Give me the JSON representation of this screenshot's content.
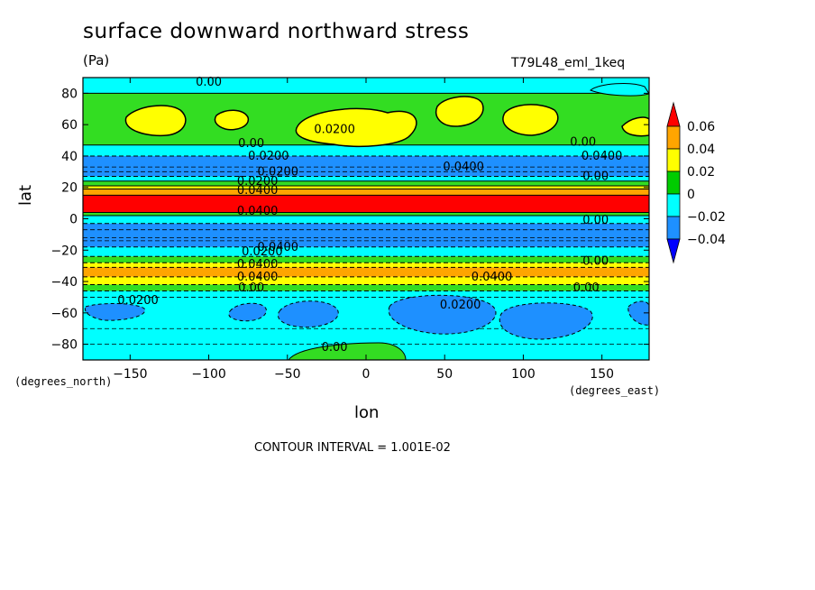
{
  "chart_data": {
    "type": "heatmap",
    "title": "surface downward northward stress",
    "units": "(Pa)",
    "run_id": "T79L48_eml_1keq",
    "xlabel": "lon",
    "ylabel": "lat",
    "x_units_note": "(degrees_east)",
    "y_units_note": "(degrees_north)",
    "contour_interval_text": "CONTOUR INTERVAL = 1.001E-02",
    "xlim": [
      -180,
      180
    ],
    "ylim": [
      -90,
      90
    ],
    "x_ticks": [
      -150,
      -100,
      -50,
      0,
      50,
      100,
      150
    ],
    "x_tick_labels": [
      "−150",
      "−100",
      "−50",
      "0",
      "50",
      "100",
      "150"
    ],
    "y_ticks": [
      80,
      60,
      40,
      20,
      0,
      -20,
      -40,
      -60,
      -80
    ],
    "y_tick_labels": [
      "80",
      "60",
      "40",
      "20",
      "0",
      "−20",
      "−40",
      "−60",
      "−80"
    ],
    "colorbar": {
      "levels": [
        0.06,
        0.04,
        0.02,
        0,
        -0.02,
        -0.04
      ],
      "labels": [
        "0.06",
        "0.04",
        "0.02",
        "0",
        "−0.02",
        "−0.04"
      ],
      "colors": [
        "#ff0000",
        "#ffa500",
        "#ffff00",
        "#00cc00",
        "#00ffff",
        "#1e90ff",
        "#0000ff"
      ]
    },
    "zonal_bands": [
      {
        "lat_top": 90,
        "lat_bottom": 80,
        "color": "#00ffff"
      },
      {
        "lat_top": 80,
        "lat_bottom": 47,
        "color": "#33dd22"
      },
      {
        "lat_top": 47,
        "lat_bottom": 40,
        "color": "#00ffff"
      },
      {
        "lat_top": 40,
        "lat_bottom": 27,
        "color": "#1e90ff"
      },
      {
        "lat_top": 27,
        "lat_bottom": 24,
        "color": "#00ffff"
      },
      {
        "lat_top": 24,
        "lat_bottom": 21,
        "color": "#33dd22"
      },
      {
        "lat_top": 21,
        "lat_bottom": 19,
        "color": "#ffff00"
      },
      {
        "lat_top": 19,
        "lat_bottom": 15,
        "color": "#ffa500"
      },
      {
        "lat_top": 15,
        "lat_bottom": 4,
        "color": "#ff0000"
      },
      {
        "lat_top": 4,
        "lat_bottom": 2,
        "color": "#33dd22"
      },
      {
        "lat_top": 2,
        "lat_bottom": -3,
        "color": "#00ffff"
      },
      {
        "lat_top": -3,
        "lat_bottom": -18,
        "color": "#1e90ff"
      },
      {
        "lat_top": -18,
        "lat_bottom": -24,
        "color": "#00ffff"
      },
      {
        "lat_top": -24,
        "lat_bottom": -28,
        "color": "#33dd22"
      },
      {
        "lat_top": -28,
        "lat_bottom": -31,
        "color": "#ffff00"
      },
      {
        "lat_top": -31,
        "lat_bottom": -37,
        "color": "#ffa500"
      },
      {
        "lat_top": -37,
        "lat_bottom": -42,
        "color": "#ffff00"
      },
      {
        "lat_top": -42,
        "lat_bottom": -46,
        "color": "#33dd22"
      },
      {
        "lat_top": -46,
        "lat_bottom": -90,
        "color": "#00ffff"
      }
    ],
    "contour_labels": [
      {
        "text": "0.00",
        "lon": -100,
        "lat": 87
      },
      {
        "text": "0.0200",
        "lon": -20,
        "lat": 57
      },
      {
        "text": "0.00",
        "lon": -73,
        "lat": 48
      },
      {
        "text": "0.0200",
        "lon": -62,
        "lat": 40
      },
      {
        "text": "0.0200",
        "lon": -56,
        "lat": 30
      },
      {
        "text": "0.0400",
        "lon": 62,
        "lat": 33
      },
      {
        "text": "0.00",
        "lon": 138,
        "lat": 49
      },
      {
        "text": "0.0400",
        "lon": 150,
        "lat": 40
      },
      {
        "text": "0.00",
        "lon": 146,
        "lat": 27
      },
      {
        "text": "0.0400",
        "lon": -69,
        "lat": 18
      },
      {
        "text": "0.0200",
        "lon": -69,
        "lat": 24
      },
      {
        "text": "0.0400",
        "lon": -69,
        "lat": 5
      },
      {
        "text": "0.00",
        "lon": 146,
        "lat": -1
      },
      {
        "text": "0.0400",
        "lon": -56,
        "lat": -18
      },
      {
        "text": "0.0200",
        "lon": -66,
        "lat": -21
      },
      {
        "text": "0.0400",
        "lon": -69,
        "lat": -29
      },
      {
        "text": "0.0400",
        "lon": -69,
        "lat": -37
      },
      {
        "text": "0.00",
        "lon": 146,
        "lat": -27
      },
      {
        "text": "0.0400",
        "lon": 80,
        "lat": -37
      },
      {
        "text": "0.00",
        "lon": -73,
        "lat": -44
      },
      {
        "text": "0.00",
        "lon": 140,
        "lat": -44
      },
      {
        "text": "0.0200",
        "lon": -145,
        "lat": -52
      },
      {
        "text": "0.0200",
        "lon": 60,
        "lat": -55
      },
      {
        "text": "0.00",
        "lon": -20,
        "lat": -82
      }
    ]
  }
}
